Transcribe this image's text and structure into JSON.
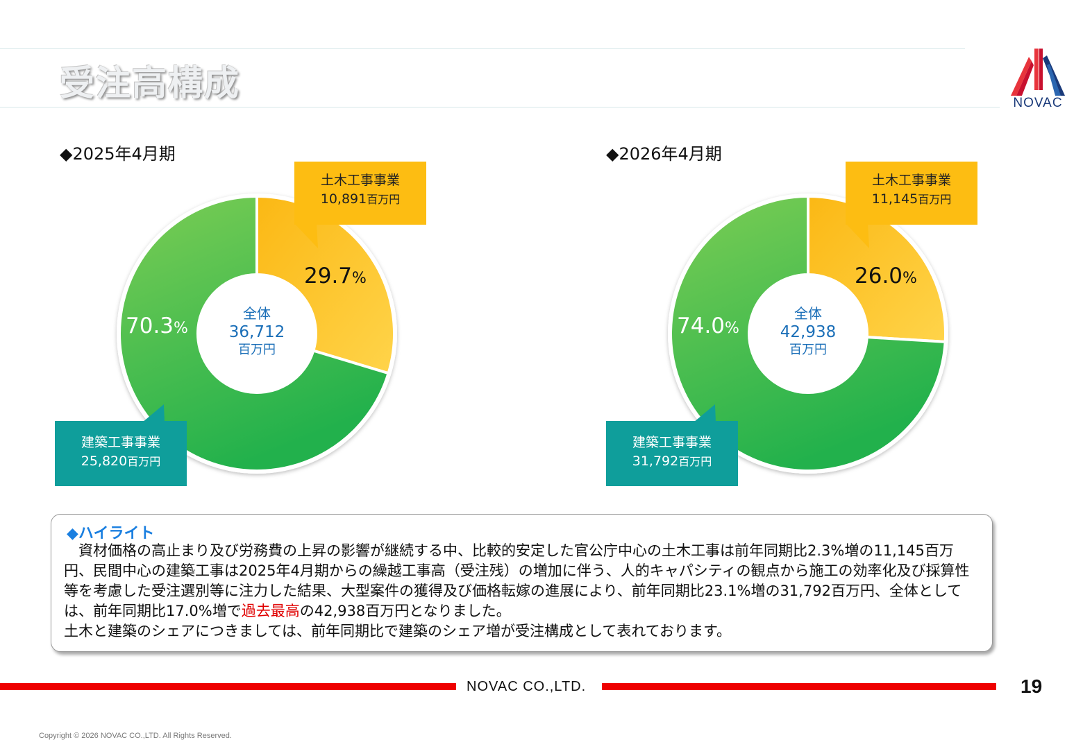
{
  "page": {
    "title": "受注高構成",
    "logo_text": "NOVAC",
    "footer_company": "NOVAC CO.,LTD.",
    "page_number": "19",
    "copyright": "Copyright © 2026 NOVAC CO.,LTD. All Rights Reserved."
  },
  "chart_data": [
    {
      "type": "pie",
      "title": "◆2025年4月期",
      "center": {
        "label": "全体",
        "value": "36,712",
        "unit": "百万円"
      },
      "slices": [
        {
          "name": "土木工事事業",
          "value": 10891,
          "value_label": "10,891",
          "unit": "百万円",
          "percent": 29.7,
          "pct_num": "29.7",
          "pct_sign": "%",
          "color": "#fdbd12"
        },
        {
          "name": "建築工事事業",
          "value": 25820,
          "value_label": "25,820",
          "unit": "百万円",
          "percent": 70.3,
          "pct_num": "70.3",
          "pct_sign": "%",
          "color": "#2fb84a"
        }
      ]
    },
    {
      "type": "pie",
      "title": "◆2026年4月期",
      "center": {
        "label": "全体",
        "value": "42,938",
        "unit": "百万円"
      },
      "slices": [
        {
          "name": "土木工事事業",
          "value": 11145,
          "value_label": "11,145",
          "unit": "百万円",
          "percent": 26.0,
          "pct_num": "26.0",
          "pct_sign": "%",
          "color": "#fdbd12"
        },
        {
          "name": "建築工事事業",
          "value": 31792,
          "value_label": "31,792",
          "unit": "百万円",
          "percent": 74.0,
          "pct_num": "74.0",
          "pct_sign": "%",
          "color": "#2fb84a"
        }
      ]
    }
  ],
  "highlight": {
    "heading": "◆ハイライト",
    "line1": "　資材価格の高止まり及び労務費の上昇の影響が継続する中、比較的安定した官公庁中心の土木工事は前年同期比2.3%増の11,145百万円、民間中心の建築工事は2025年4月期からの繰越工事高（受注残）の増加に伴う、人的キャパシティの観点から施工の効率化及び採算性等を考慮した受注選別等に注力した結果、大型案件の獲得及び価格転嫁の進展により、前年同期比23.1%増の31,792百万円、全体としては、前年同期比17.0%増で",
    "emphasis": "過去最高",
    "line1_end": "の42,938百万円となりました。",
    "line2": "土木と建築のシェアにつきましては、前年同期比で建築のシェア増が受注構成として表れております。"
  },
  "colors": {
    "civil": "#fdbd12",
    "building": "#2fb84a",
    "callout_teal": "#0f9e9b",
    "footer_red": "#ee0000",
    "center_text": "#1b6fb8"
  }
}
